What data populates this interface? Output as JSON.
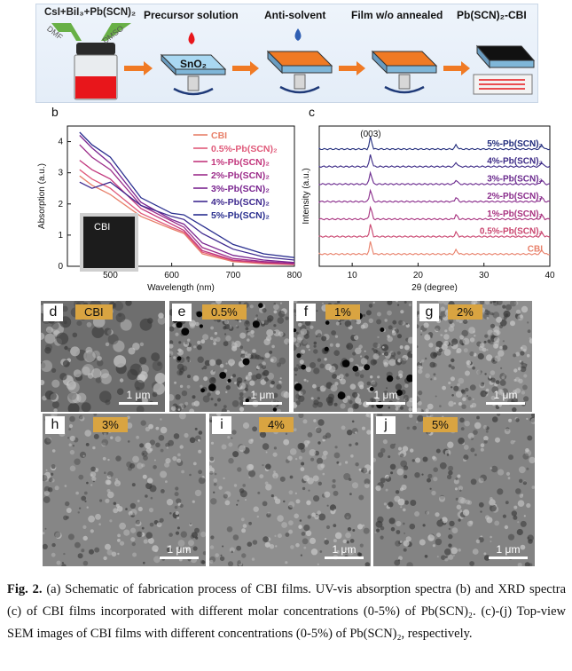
{
  "schematic": {
    "reagents_label": "CsI+BiI₃+Pb(SCN)₂",
    "dmf": "DMF",
    "dmso": "DMSO",
    "substrate_label": "SnO₂",
    "steps": [
      "Precursor solution",
      "Anti-solvent",
      "Film w/o annealed",
      "Pb(SCN)₂-CBI"
    ],
    "colors": {
      "solution": "#e8161b",
      "antisolvent": "#2f5fb3",
      "film": "#f07a24",
      "cbi_film": "#111111",
      "arrow": "#f07a24"
    }
  },
  "panel_b": {
    "label": "b",
    "inset_label": "CBI",
    "legend": [
      "CBI",
      "0.5%-Pb(SCN)₂",
      "1%-Pb(SCN)₂",
      "2%-Pb(SCN)₂",
      "3%-Pb(SCN)₂",
      "4%-Pb(SCN)₂",
      "5%-Pb(SCN)₂"
    ]
  },
  "panel_c": {
    "label": "c",
    "peak_label": "(003)",
    "series_labels": [
      "5%-Pb(SCN)₂",
      "4%-Pb(SCN)₂",
      "3%-Pb(SCN)₂",
      "2%-Pb(SCN)₂",
      "1%-Pb(SCN)₂",
      "0.5%-Pb(SCN)₂",
      "CBI"
    ]
  },
  "chart_data": [
    {
      "type": "line",
      "xlabel": "Wavelength (nm)",
      "ylabel": "Absorption (a.u.)",
      "xlim": [
        430,
        800
      ],
      "ylim": [
        0,
        4.5
      ],
      "xticks": [
        500,
        600,
        700,
        800
      ],
      "yticks": [
        0,
        1,
        2,
        3,
        4
      ],
      "legend_position": "top-right",
      "series": [
        {
          "name": "CBI",
          "color": "#e8806a",
          "x": [
            450,
            470,
            500,
            550,
            600,
            620,
            650,
            700,
            750,
            800
          ],
          "y": [
            2.9,
            2.6,
            2.3,
            1.6,
            1.2,
            1.05,
            0.4,
            0.15,
            0.08,
            0.05
          ]
        },
        {
          "name": "0.5%-Pb(SCN)₂",
          "color": "#e05a7a",
          "x": [
            450,
            470,
            500,
            550,
            600,
            620,
            650,
            700,
            750,
            800
          ],
          "y": [
            3.1,
            2.8,
            2.5,
            1.7,
            1.25,
            1.1,
            0.45,
            0.18,
            0.1,
            0.06
          ]
        },
        {
          "name": "1%-Pb(SCN)₂",
          "color": "#c2377d",
          "x": [
            450,
            470,
            500,
            550,
            600,
            620,
            650,
            700,
            750,
            800
          ],
          "y": [
            3.4,
            3.1,
            2.8,
            1.85,
            1.35,
            1.15,
            0.5,
            0.2,
            0.12,
            0.07
          ]
        },
        {
          "name": "2%-Pb(SCN)₂",
          "color": "#9c2d8a",
          "x": [
            450,
            470,
            500,
            550,
            600,
            620,
            650,
            700,
            750,
            800
          ],
          "y": [
            3.9,
            3.5,
            3.1,
            1.95,
            1.45,
            1.25,
            0.6,
            0.25,
            0.15,
            0.09
          ]
        },
        {
          "name": "3%-Pb(SCN)₂",
          "color": "#7a2590",
          "x": [
            450,
            470,
            500,
            550,
            600,
            620,
            650,
            700,
            750,
            800
          ],
          "y": [
            4.2,
            3.8,
            3.3,
            2.05,
            1.5,
            1.35,
            0.75,
            0.35,
            0.2,
            0.12
          ]
        },
        {
          "name": "4%-Pb(SCN)₂",
          "color": "#3f2a8f",
          "x": [
            450,
            470,
            500,
            550,
            600,
            620,
            650,
            700,
            750,
            800
          ],
          "y": [
            2.7,
            2.5,
            2.7,
            1.95,
            1.6,
            1.5,
            1.05,
            0.55,
            0.3,
            0.2
          ]
        },
        {
          "name": "5%-Pb(SCN)₂",
          "color": "#2a2f8f",
          "x": [
            450,
            470,
            500,
            550,
            600,
            620,
            650,
            700,
            750,
            800
          ],
          "y": [
            4.3,
            3.9,
            3.5,
            2.2,
            1.7,
            1.65,
            1.3,
            0.7,
            0.4,
            0.28
          ]
        }
      ]
    },
    {
      "type": "line",
      "xlabel": "2θ (degree)",
      "ylabel": "Intensity (a.u.)",
      "xlim": [
        5,
        40
      ],
      "xticks": [
        10,
        20,
        30,
        40
      ],
      "peaks_2theta": [
        12.8,
        25.8,
        38.8
      ],
      "series": [
        {
          "name": "5%-Pb(SCN)₂",
          "color": "#1f2a7a"
        },
        {
          "name": "4%-Pb(SCN)₂",
          "color": "#3c2a86"
        },
        {
          "name": "3%-Pb(SCN)₂",
          "color": "#6a2a8e"
        },
        {
          "name": "2%-Pb(SCN)₂",
          "color": "#8a2d8c"
        },
        {
          "name": "1%-Pb(SCN)₂",
          "color": "#a8327f"
        },
        {
          "name": "0.5%-Pb(SCN)₂",
          "color": "#c9456f"
        },
        {
          "name": "CBI",
          "color": "#e8806a"
        }
      ]
    }
  ],
  "sem_panels": [
    {
      "letter": "d",
      "conc": "CBI",
      "scale": "1 μm"
    },
    {
      "letter": "e",
      "conc": "0.5%",
      "scale": "1 μm"
    },
    {
      "letter": "f",
      "conc": "1%",
      "scale": "1 μm"
    },
    {
      "letter": "g",
      "conc": "2%",
      "scale": "1 μm"
    },
    {
      "letter": "h",
      "conc": "3%",
      "scale": "1 μm"
    },
    {
      "letter": "i",
      "conc": "4%",
      "scale": "1 μm"
    },
    {
      "letter": "j",
      "conc": "5%",
      "scale": "1 μm"
    }
  ],
  "caption": {
    "label": "Fig. 2.",
    "text": " (a) Schematic of fabrication process of CBI films. UV-vis absorption spectra (b) and XRD spectra (c) of CBI films incorporated with different molar concentrations (0-5%) of Pb(SCN)₂. (c)-(j) Top-view SEM images of CBI films with different concentrations (0-5%) of Pb(SCN)₂, respectively."
  }
}
